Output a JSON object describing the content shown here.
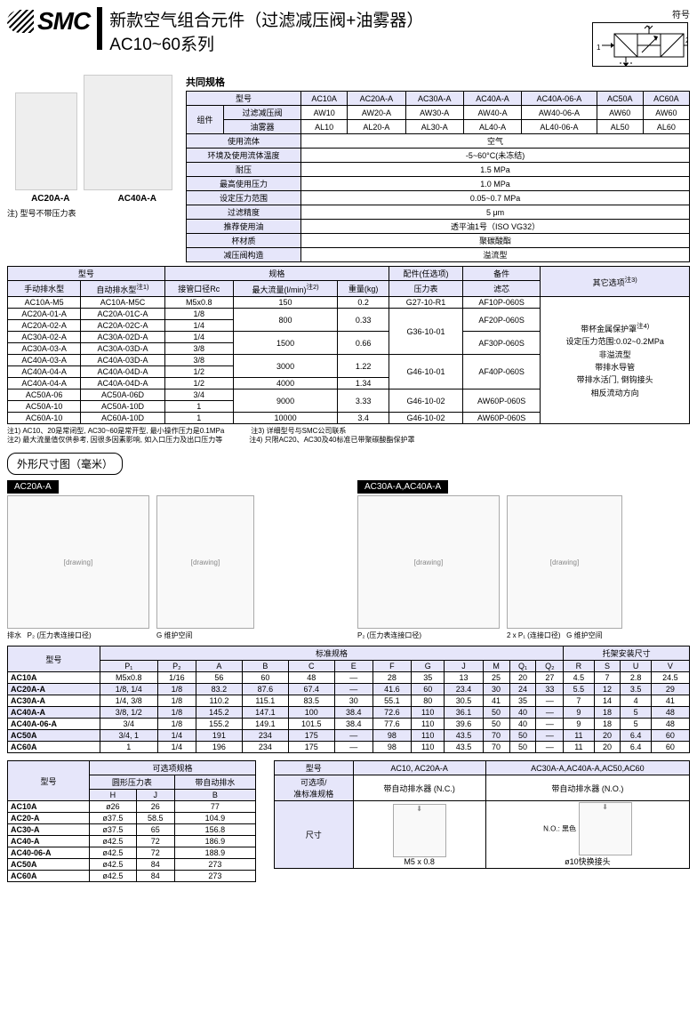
{
  "header": {
    "logo_text": "SMC",
    "title_main": "新款空气组合元件（过滤减压阀+油雾器）",
    "title_sub": "AC10~60系列",
    "symbol_label": "符号"
  },
  "products": {
    "label_left": "AC20A-A",
    "label_right": "AC40A-A",
    "note": "注) 型号不带压力表"
  },
  "common_spec": {
    "title": "共同规格",
    "header_model": "型号",
    "header_component": "组件",
    "models": [
      "AC10A",
      "AC20A-A",
      "AC30A-A",
      "AC40A-A",
      "AC40A-06-A",
      "AC50A",
      "AC60A"
    ],
    "row_filter": {
      "label": "过滤减压阀",
      "vals": [
        "AW10",
        "AW20-A",
        "AW30-A",
        "AW40-A",
        "AW40-06-A",
        "AW60",
        "AW60"
      ]
    },
    "row_lub": {
      "label": "油雾器",
      "vals": [
        "AL10",
        "AL20-A",
        "AL30-A",
        "AL40-A",
        "AL40-06-A",
        "AL50",
        "AL60"
      ]
    },
    "rows": [
      {
        "label": "使用流体",
        "val": "空气"
      },
      {
        "label": "环境及使用流体温度",
        "val": "-5~60°C(未冻结)"
      },
      {
        "label": "耐压",
        "val": "1.5 MPa"
      },
      {
        "label": "最高使用压力",
        "val": "1.0 MPa"
      },
      {
        "label": "设定压力范围",
        "val": "0.05~0.7 MPa"
      },
      {
        "label": "过滤精度",
        "val": "5 μm"
      },
      {
        "label": "推荐使用油",
        "val": "透平油1号（ISO VG32）"
      },
      {
        "label": "杯材质",
        "val": "聚碳酸酯"
      },
      {
        "label": "减压阀构造",
        "val": "溢流型"
      }
    ]
  },
  "model_table": {
    "h_model": "型号",
    "h_spec": "规格",
    "h_acc": "配件(任选项)",
    "h_spare": "备件",
    "h_other": "其它选项",
    "sup_other": "注3)",
    "sub_manual": "手动排水型",
    "sub_auto": "自动排水型",
    "sup_auto": "注1)",
    "sub_port": "接管口径Rc",
    "sub_flow": "最大流量(l/min)",
    "sup_flow": "注2)",
    "sub_weight": "重量(kg)",
    "sub_gauge": "压力表",
    "sub_filter": "滤芯",
    "rows": [
      {
        "m": "AC10A-M5",
        "a": "AC10A-M5C",
        "port": "M5x0.8",
        "flow": "150",
        "wt": "0.2",
        "g": "G27-10-R1",
        "f": "AF10P-060S"
      },
      {
        "m": "AC20A-01-A",
        "a": "AC20A-01C-A",
        "port": "1/8",
        "flow": "800",
        "wt": "0.33",
        "g": "G36-10-01",
        "f": "AF20P-060S"
      },
      {
        "m": "AC20A-02-A",
        "a": "AC20A-02C-A",
        "port": "1/4"
      },
      {
        "m": "AC30A-02-A",
        "a": "AC30A-02D-A",
        "port": "1/4",
        "flow": "1500",
        "wt": "0.66",
        "f": "AF30P-060S"
      },
      {
        "m": "AC30A-03-A",
        "a": "AC30A-03D-A",
        "port": "3/8"
      },
      {
        "m": "AC40A-03-A",
        "a": "AC40A-03D-A",
        "port": "3/8",
        "flow": "3000",
        "wt": "1.22",
        "g": "G46-10-01",
        "f": "AF40P-060S"
      },
      {
        "m": "AC40A-04-A",
        "a": "AC40A-04D-A",
        "port": "1/2"
      },
      {
        "m": "AC40A-04-A",
        "a": "AC40A-04D-A",
        "port": "1/2",
        "flow": "4000",
        "wt": "1.34"
      },
      {
        "m": "AC50A-06",
        "a": "AC50A-06D",
        "port": "3/4",
        "flow": "9000",
        "wt": "3.33",
        "g": "G46-10-02",
        "f": "AW60P-060S"
      },
      {
        "m": "AC50A-10",
        "a": "AC50A-10D",
        "port": "1"
      },
      {
        "m": "AC60A-10",
        "a": "AC60A-10D",
        "port": "1",
        "flow": "10000",
        "wt": "3.4",
        "g": "G46-10-02",
        "f": "AW60P-060S"
      }
    ],
    "other_options": [
      "带杯金属保护罩",
      "设定压力范围:0.02~0.2MPa",
      "非溢流型",
      "带排水导管",
      "带排水活门, 倒钩接头",
      "相反流动方向"
    ],
    "sup_guard": "注4)"
  },
  "footnotes": {
    "n1": "注1) AC10、20是常闭型, AC30~60是常开型, 最小操作压力是0.1MPa",
    "n2": "注2) 最大流量值仅供参考, 因很多因素影响, 如入口压力及出口压力等",
    "n3": "注3) 详细型号与SMC公司联系",
    "n4": "注4) 只限AC20、AC30及40标准已带聚碳酸酯保护罩"
  },
  "dim": {
    "title": "外形尺寸图（毫米）",
    "g1": "AC20A-A",
    "g2": "AC30A-A,AC40A-A",
    "drain_label": "排水",
    "gauge_conn": "(压力表连接口径)",
    "service_space": "维护空间",
    "gauge_opt": "压力表\\n(可选项)",
    "port_label": "(连接口径)"
  },
  "dim_table": {
    "h_model": "型号",
    "h_std": "标准规格",
    "h_bracket": "托架安装尺寸",
    "cols": [
      "P₁",
      "P₂",
      "A",
      "B",
      "C",
      "E",
      "F",
      "G",
      "J",
      "M",
      "Q₁",
      "Q₂",
      "R",
      "S",
      "U",
      "V"
    ],
    "rows": [
      {
        "m": "AC10A",
        "v": [
          "M5x0.8",
          "1/16",
          "56",
          "60",
          "48",
          "—",
          "28",
          "35",
          "13",
          "25",
          "20",
          "27",
          "4.5",
          "7",
          "2.8",
          "24.5"
        ]
      },
      {
        "m": "AC20A-A",
        "v": [
          "1/8, 1/4",
          "1/8",
          "83.2",
          "87.6",
          "67.4",
          "—",
          "41.6",
          "60",
          "23.4",
          "30",
          "24",
          "33",
          "5.5",
          "12",
          "3.5",
          "29"
        ]
      },
      {
        "m": "AC30A-A",
        "v": [
          "1/4, 3/8",
          "1/8",
          "110.2",
          "115.1",
          "83.5",
          "30",
          "55.1",
          "80",
          "30.5",
          "41",
          "35",
          "—",
          "7",
          "14",
          "4",
          "41"
        ]
      },
      {
        "m": "AC40A-A",
        "v": [
          "3/8, 1/2",
          "1/8",
          "145.2",
          "147.1",
          "100",
          "38.4",
          "72.6",
          "110",
          "36.1",
          "50",
          "40",
          "—",
          "9",
          "18",
          "5",
          "48"
        ]
      },
      {
        "m": "AC40A-06-A",
        "v": [
          "3/4",
          "1/8",
          "155.2",
          "149.1",
          "101.5",
          "38.4",
          "77.6",
          "110",
          "39.6",
          "50",
          "40",
          "—",
          "9",
          "18",
          "5",
          "48"
        ]
      },
      {
        "m": "AC50A",
        "v": [
          "3/4, 1",
          "1/4",
          "191",
          "234",
          "175",
          "—",
          "98",
          "110",
          "43.5",
          "70",
          "50",
          "—",
          "11",
          "20",
          "6.4",
          "60"
        ]
      },
      {
        "m": "AC60A",
        "v": [
          "1",
          "1/4",
          "196",
          "234",
          "175",
          "—",
          "98",
          "110",
          "43.5",
          "70",
          "50",
          "—",
          "11",
          "20",
          "6.4",
          "60"
        ]
      }
    ]
  },
  "opt_table": {
    "h_model": "型号",
    "h_opt": "可选项规格",
    "h_round": "圆形压力表",
    "h_auto": "带自动排水",
    "cols": [
      "H",
      "J",
      "B"
    ],
    "rows": [
      {
        "m": "AC10A",
        "v": [
          "ø26",
          "26",
          "77"
        ]
      },
      {
        "m": "AC20-A",
        "v": [
          "ø37.5",
          "58.5",
          "104.9"
        ]
      },
      {
        "m": "AC30-A",
        "v": [
          "ø37.5",
          "65",
          "156.8"
        ]
      },
      {
        "m": "AC40-A",
        "v": [
          "ø42.5",
          "72",
          "186.9"
        ]
      },
      {
        "m": "AC40-06-A",
        "v": [
          "ø42.5",
          "72",
          "188.9"
        ]
      },
      {
        "m": "AC50A",
        "v": [
          "ø42.5",
          "84",
          "273"
        ]
      },
      {
        "m": "AC60A",
        "v": [
          "ø42.5",
          "84",
          "273"
        ]
      }
    ]
  },
  "drain_table": {
    "h_model": "型号",
    "h_c1": "AC10, AC20A-A",
    "h_c2": "AC30A-A,AC40A-A,AC50,AC60",
    "h_option": "可选项/\\n准标准规格",
    "v_nc": "带自动排水器 (N.C.)",
    "v_no": "带自动排水器 (N.O.)",
    "h_dim": "尺寸",
    "m5": "M5 x 0.8",
    "quick": "ø10快换接头",
    "black": "N.O.: 黑色"
  }
}
